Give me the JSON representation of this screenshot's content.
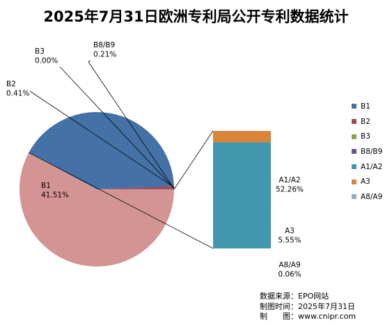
{
  "title": "2025年7月31日欧洲专利局公开专利数据统计",
  "chart_data": {
    "type": "bar-of-pie",
    "pie": {
      "slices": [
        {
          "name": "B1",
          "label": "B1",
          "value": 41.51,
          "percent_label": "41.51%",
          "color": "#4472A6"
        },
        {
          "name": "B2",
          "label": "B2",
          "value": 0.41,
          "percent_label": "0.41%",
          "color": "#A94543"
        },
        {
          "name": "B3",
          "label": "B3",
          "value": 0.0,
          "percent_label": "0.00%",
          "color": "#88A64E"
        },
        {
          "name": "B8/B9",
          "label": "B8/B9",
          "value": 0.21,
          "percent_label": "0.21%",
          "color": "#6E548D"
        },
        {
          "name": "Other",
          "label": "",
          "value": 57.87,
          "percent_label": "",
          "color": "#D49493"
        }
      ]
    },
    "bar": {
      "segments": [
        {
          "name": "A1/A2",
          "label": "A1/A2",
          "value": 52.26,
          "percent_label": "52.26%",
          "color": "#4097AE"
        },
        {
          "name": "A3",
          "label": "A3",
          "value": 5.55,
          "percent_label": "5.55%",
          "color": "#DB8438"
        },
        {
          "name": "A8/A9",
          "label": "A8/A9",
          "value": 0.06,
          "percent_label": "0.06%",
          "color": "#95AACB"
        }
      ]
    },
    "legend": {
      "position": "right",
      "entries": [
        "B1",
        "B2",
        "B3",
        "B8/B9",
        "A1/A2",
        "A3",
        "A8/A9"
      ]
    }
  },
  "legend_colors": [
    "#4472A6",
    "#A94543",
    "#88A64E",
    "#6E548D",
    "#4097AE",
    "#DB8438",
    "#95AACB"
  ],
  "source": {
    "line1": "数据来源：EPO网站",
    "line2": "制图时间：2025年7月31日",
    "line3": "制　　图：www.cnipr.com"
  }
}
